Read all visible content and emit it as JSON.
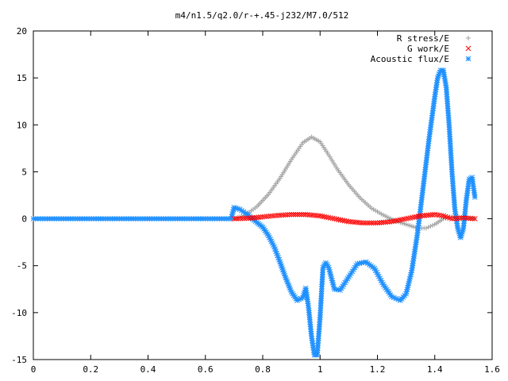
{
  "chart_data": {
    "type": "scatter",
    "title": "m4/n1.5/q2.0/r-+.45-j232/M7.0/512",
    "xlabel": "",
    "ylabel": "",
    "xlim": [
      0,
      1.6
    ],
    "ylim": [
      -15,
      20
    ],
    "xticks": [
      "0",
      "0.2",
      "0.4",
      "0.6",
      "0.8",
      "1",
      "1.2",
      "1.4",
      "1.6"
    ],
    "yticks": [
      "-15",
      "-10",
      "-5",
      "0",
      "5",
      "10",
      "15",
      "20"
    ],
    "grid": false,
    "legend_position": "top-right",
    "series": [
      {
        "name": "R stress/E",
        "marker": "+",
        "color": "#a0a0a0",
        "x": [
          0.7,
          0.74,
          0.78,
          0.82,
          0.86,
          0.9,
          0.94,
          0.97,
          1.0,
          1.03,
          1.06,
          1.1,
          1.14,
          1.18,
          1.22,
          1.26,
          1.3,
          1.34,
          1.37,
          1.4,
          1.43,
          1.46,
          1.5,
          1.54
        ],
        "values": [
          0.0,
          0.4,
          1.3,
          2.6,
          4.3,
          6.3,
          8.1,
          8.7,
          8.2,
          6.8,
          5.3,
          3.6,
          2.2,
          1.1,
          0.4,
          -0.2,
          -0.6,
          -1.0,
          -1.0,
          -0.6,
          0.0,
          0.2,
          0.1,
          0.0
        ]
      },
      {
        "name": "G work/E",
        "marker": "x",
        "color": "#ff0000",
        "x": [
          0.7,
          0.75,
          0.8,
          0.85,
          0.9,
          0.95,
          1.0,
          1.05,
          1.1,
          1.15,
          1.2,
          1.25,
          1.3,
          1.35,
          1.4,
          1.43,
          1.46,
          1.5,
          1.54
        ],
        "values": [
          0.0,
          0.05,
          0.2,
          0.35,
          0.45,
          0.45,
          0.3,
          0.0,
          -0.3,
          -0.45,
          -0.45,
          -0.3,
          0.0,
          0.3,
          0.45,
          0.3,
          0.0,
          0.1,
          0.0
        ]
      },
      {
        "name": "Acoustic flux/E",
        "marker": "*",
        "color": "#1e90ff",
        "x": [
          0.0,
          0.3,
          0.6,
          0.69,
          0.7,
          0.72,
          0.74,
          0.76,
          0.78,
          0.8,
          0.82,
          0.84,
          0.86,
          0.88,
          0.9,
          0.92,
          0.94,
          0.95,
          0.96,
          0.97,
          0.98,
          0.99,
          1.0,
          1.01,
          1.02,
          1.03,
          1.05,
          1.07,
          1.1,
          1.13,
          1.16,
          1.19,
          1.22,
          1.25,
          1.28,
          1.3,
          1.32,
          1.34,
          1.36,
          1.38,
          1.4,
          1.41,
          1.42,
          1.43,
          1.44,
          1.45,
          1.46,
          1.47,
          1.48,
          1.49,
          1.5,
          1.51,
          1.52,
          1.53,
          1.54
        ],
        "values": [
          0.0,
          0.0,
          0.0,
          0.0,
          1.2,
          1.0,
          0.6,
          0.1,
          -0.4,
          -0.9,
          -1.8,
          -3.0,
          -4.6,
          -6.3,
          -7.8,
          -8.7,
          -8.4,
          -7.4,
          -9.5,
          -12.5,
          -14.5,
          -14.5,
          -10.5,
          -5.2,
          -4.7,
          -5.2,
          -7.5,
          -7.6,
          -6.2,
          -4.8,
          -4.6,
          -5.3,
          -7.0,
          -8.3,
          -8.7,
          -8.0,
          -5.5,
          -1.5,
          3.5,
          8.5,
          13.0,
          15.0,
          15.8,
          15.8,
          14.0,
          10.0,
          5.0,
          1.0,
          -1.0,
          -2.0,
          -1.0,
          2.0,
          4.2,
          4.4,
          2.3
        ]
      }
    ]
  }
}
